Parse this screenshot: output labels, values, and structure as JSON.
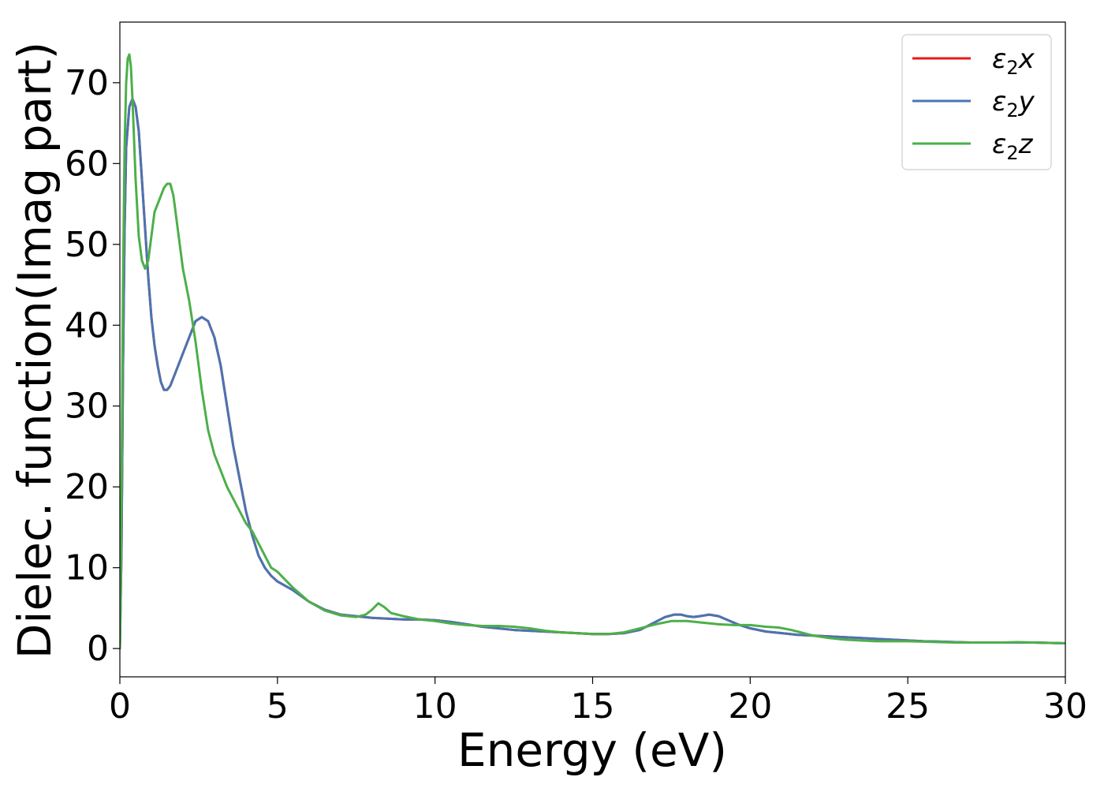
{
  "chart_data": {
    "type": "line",
    "xlabel": "Energy (eV)",
    "ylabel": "Dielec. function(Imag part)",
    "xlim": [
      0,
      30
    ],
    "ylim": [
      -3.5,
      77.5
    ],
    "xticks": [
      0,
      5,
      10,
      15,
      20,
      25,
      30
    ],
    "yticks": [
      0,
      10,
      20,
      30,
      40,
      50,
      60,
      70
    ],
    "grid": false,
    "legend_position": "top-right",
    "series": [
      {
        "name": "ε₂x",
        "legend_base": "ε",
        "legend_sub": "2",
        "legend_var": "x",
        "color": "#e41a1c",
        "x": [
          0,
          0.05,
          0.1,
          0.15,
          0.2,
          0.3,
          0.4,
          0.5,
          0.6,
          0.7,
          0.8,
          0.9,
          1.0,
          1.1,
          1.2,
          1.3,
          1.4,
          1.5,
          1.6,
          1.7,
          1.8,
          1.9,
          2.0,
          2.2,
          2.4,
          2.6,
          2.8,
          3.0,
          3.2,
          3.4,
          3.6,
          3.8,
          4.0,
          4.2,
          4.4,
          4.6,
          4.8,
          5.0,
          5.5,
          6.0,
          6.5,
          7.0,
          7.5,
          8.0,
          8.5,
          9.0,
          9.5,
          10.0,
          10.5,
          11.0,
          11.5,
          12.0,
          12.5,
          13.0,
          13.5,
          14.0,
          14.5,
          15.0,
          15.5,
          16.0,
          16.5,
          17.0,
          17.3,
          17.6,
          17.8,
          18.0,
          18.2,
          18.4,
          18.7,
          19.0,
          19.3,
          19.6,
          20.0,
          20.5,
          21.0,
          21.5,
          22.0,
          22.5,
          23.0,
          23.5,
          24.0,
          24.5,
          25.0,
          25.5,
          26.0,
          26.5,
          27.0,
          27.5,
          28.0,
          28.5,
          29.0,
          29.5,
          30.0
        ],
        "y": [
          0,
          12,
          35,
          52,
          62,
          67,
          68,
          67,
          64,
          58,
          52,
          46,
          41,
          37.5,
          35,
          33,
          32,
          32,
          32.5,
          33.5,
          34.5,
          35.5,
          36.5,
          38.5,
          40.5,
          41,
          40.5,
          38.5,
          35,
          30,
          25,
          21,
          17,
          14,
          11.5,
          10,
          9,
          8.3,
          7.2,
          5.8,
          4.8,
          4.2,
          4.0,
          3.8,
          3.7,
          3.6,
          3.6,
          3.5,
          3.3,
          3.0,
          2.7,
          2.5,
          2.3,
          2.2,
          2.1,
          2.0,
          1.9,
          1.8,
          1.8,
          1.9,
          2.3,
          3.3,
          3.9,
          4.2,
          4.2,
          4.0,
          3.9,
          4.0,
          4.2,
          4.0,
          3.5,
          3.0,
          2.5,
          2.1,
          1.9,
          1.7,
          1.6,
          1.5,
          1.4,
          1.3,
          1.2,
          1.1,
          1.0,
          0.9,
          0.85,
          0.8,
          0.75,
          0.75,
          0.75,
          0.75,
          0.75,
          0.7,
          0.65
        ]
      },
      {
        "name": "ε₂y",
        "legend_base": "ε",
        "legend_sub": "2",
        "legend_var": "y",
        "color": "#4a74b2",
        "x": [
          0,
          0.05,
          0.1,
          0.15,
          0.2,
          0.3,
          0.4,
          0.5,
          0.6,
          0.7,
          0.8,
          0.9,
          1.0,
          1.1,
          1.2,
          1.3,
          1.4,
          1.5,
          1.6,
          1.7,
          1.8,
          1.9,
          2.0,
          2.2,
          2.4,
          2.6,
          2.8,
          3.0,
          3.2,
          3.4,
          3.6,
          3.8,
          4.0,
          4.2,
          4.4,
          4.6,
          4.8,
          5.0,
          5.5,
          6.0,
          6.5,
          7.0,
          7.5,
          8.0,
          8.5,
          9.0,
          9.5,
          10.0,
          10.5,
          11.0,
          11.5,
          12.0,
          12.5,
          13.0,
          13.5,
          14.0,
          14.5,
          15.0,
          15.5,
          16.0,
          16.5,
          17.0,
          17.3,
          17.6,
          17.8,
          18.0,
          18.2,
          18.4,
          18.7,
          19.0,
          19.3,
          19.6,
          20.0,
          20.5,
          21.0,
          21.5,
          22.0,
          22.5,
          23.0,
          23.5,
          24.0,
          24.5,
          25.0,
          25.5,
          26.0,
          26.5,
          27.0,
          27.5,
          28.0,
          28.5,
          29.0,
          29.5,
          30.0
        ],
        "y": [
          0,
          12,
          35,
          52,
          62,
          67,
          68,
          67,
          64,
          58,
          52,
          46,
          41,
          37.5,
          35,
          33,
          32,
          32,
          32.5,
          33.5,
          34.5,
          35.5,
          36.5,
          38.5,
          40.5,
          41,
          40.5,
          38.5,
          35,
          30,
          25,
          21,
          17,
          14,
          11.5,
          10,
          9,
          8.3,
          7.2,
          5.8,
          4.8,
          4.2,
          4.0,
          3.8,
          3.7,
          3.6,
          3.6,
          3.5,
          3.3,
          3.0,
          2.7,
          2.5,
          2.3,
          2.2,
          2.1,
          2.0,
          1.9,
          1.8,
          1.8,
          1.9,
          2.3,
          3.3,
          3.9,
          4.2,
          4.2,
          4.0,
          3.9,
          4.0,
          4.2,
          4.0,
          3.5,
          3.0,
          2.5,
          2.1,
          1.9,
          1.7,
          1.6,
          1.5,
          1.4,
          1.3,
          1.2,
          1.1,
          1.0,
          0.9,
          0.85,
          0.8,
          0.75,
          0.75,
          0.75,
          0.75,
          0.75,
          0.7,
          0.65
        ]
      },
      {
        "name": "ε₂z",
        "legend_base": "ε",
        "legend_sub": "2",
        "legend_var": "z",
        "color": "#4daf4a",
        "x": [
          0,
          0.05,
          0.1,
          0.15,
          0.2,
          0.25,
          0.3,
          0.35,
          0.4,
          0.5,
          0.6,
          0.7,
          0.8,
          0.9,
          1.0,
          1.1,
          1.2,
          1.3,
          1.4,
          1.5,
          1.6,
          1.7,
          1.8,
          1.9,
          2.0,
          2.2,
          2.4,
          2.6,
          2.8,
          3.0,
          3.2,
          3.4,
          3.6,
          3.8,
          4.0,
          4.2,
          4.4,
          4.6,
          4.8,
          5.0,
          5.5,
          6.0,
          6.5,
          7.0,
          7.5,
          7.8,
          8.0,
          8.2,
          8.4,
          8.6,
          9.0,
          9.5,
          10.0,
          10.5,
          11.0,
          11.5,
          12.0,
          12.5,
          13.0,
          13.5,
          14.0,
          14.5,
          15.0,
          15.5,
          16.0,
          16.5,
          17.0,
          17.5,
          18.0,
          18.5,
          19.0,
          19.5,
          20.0,
          20.5,
          20.9,
          21.3,
          21.6,
          22.0,
          22.5,
          23.0,
          23.5,
          24.0,
          24.5,
          25.0,
          25.5,
          26.0,
          26.5,
          27.0,
          27.5,
          28.0,
          28.5,
          29.0,
          29.5,
          30.0
        ],
        "y": [
          0,
          18,
          45,
          62,
          70,
          73,
          73.5,
          72,
          68,
          58,
          51,
          48,
          47,
          48,
          51,
          54,
          55,
          56,
          57,
          57.5,
          57.5,
          56,
          53,
          50,
          47,
          43,
          38,
          32,
          27,
          24,
          22,
          20,
          18.5,
          17,
          15.5,
          14.5,
          13,
          11.5,
          10,
          9.5,
          7.5,
          5.8,
          4.7,
          4.1,
          3.9,
          4.2,
          4.8,
          5.6,
          5.1,
          4.4,
          4.0,
          3.6,
          3.4,
          3.1,
          2.9,
          2.8,
          2.8,
          2.7,
          2.5,
          2.2,
          2.0,
          1.9,
          1.8,
          1.8,
          2.0,
          2.5,
          3.0,
          3.4,
          3.4,
          3.2,
          3.0,
          2.9,
          2.9,
          2.7,
          2.6,
          2.3,
          2.0,
          1.6,
          1.3,
          1.1,
          1.0,
          0.9,
          0.9,
          0.9,
          0.85,
          0.8,
          0.75,
          0.75,
          0.75,
          0.75,
          0.8,
          0.75,
          0.7,
          0.65
        ]
      }
    ]
  }
}
